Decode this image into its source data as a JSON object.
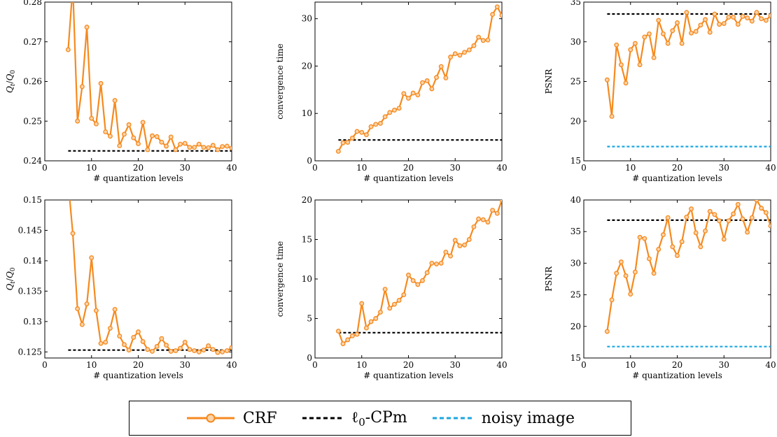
{
  "chart_data": [
    {
      "type": "line",
      "xlabel": "# quantization levels",
      "ylabel": "Q_t/Q_0",
      "xlim": [
        0,
        40
      ],
      "ylim": [
        0.24,
        0.28
      ],
      "xticks": [
        "0",
        "10",
        "20",
        "30",
        "40"
      ],
      "yticks": [
        "0.24",
        "0.25",
        "0.26",
        "0.27",
        "0.28"
      ],
      "series": [
        {
          "name": "CRF",
          "x": [
            5,
            6,
            7,
            8,
            9,
            10,
            11,
            12,
            13,
            14,
            15,
            16,
            17,
            18,
            19,
            20,
            21,
            22,
            23,
            24,
            25,
            26,
            27,
            28,
            29,
            30,
            31,
            32,
            33,
            34,
            35,
            36,
            37,
            38,
            39,
            40
          ],
          "values": [
            0.268,
            0.284,
            0.25,
            0.2587,
            0.2737,
            0.2507,
            0.2493,
            0.2595,
            0.2473,
            0.2462,
            0.2552,
            0.2438,
            0.2467,
            0.2491,
            0.2458,
            0.2443,
            0.2497,
            0.2428,
            0.2463,
            0.2461,
            0.2447,
            0.2437,
            0.246,
            0.2428,
            0.2442,
            0.2444,
            0.2434,
            0.2434,
            0.2442,
            0.2434,
            0.2433,
            0.2439,
            0.2428,
            0.2436,
            0.2437,
            0.2432
          ]
        },
        {
          "name": "l0-CPm",
          "x": [
            5,
            40
          ],
          "values": [
            0.2425,
            0.2425
          ]
        }
      ]
    },
    {
      "type": "line",
      "xlabel": "# quantization levels",
      "ylabel": "convergence time",
      "xlim": [
        0,
        40
      ],
      "ylim": [
        0,
        33.5
      ],
      "xticks": [
        "0",
        "10",
        "20",
        "30",
        "40"
      ],
      "yticks": [
        "0",
        "10",
        "20",
        "30"
      ],
      "series": [
        {
          "name": "CRF",
          "x": [
            5,
            6,
            7,
            8,
            9,
            10,
            11,
            12,
            13,
            14,
            15,
            16,
            17,
            18,
            19,
            20,
            21,
            22,
            23,
            24,
            25,
            26,
            27,
            28,
            29,
            30,
            31,
            32,
            33,
            34,
            35,
            36,
            37,
            38,
            39,
            40
          ],
          "values": [
            2.0,
            3.8,
            3.9,
            4.8,
            6.2,
            6.0,
            5.5,
            7.2,
            7.7,
            7.9,
            9.3,
            10.2,
            10.7,
            11.1,
            14.2,
            13.2,
            14.3,
            13.9,
            16.5,
            16.9,
            15.2,
            17.6,
            19.9,
            17.5,
            21.9,
            22.6,
            22.3,
            22.9,
            23.4,
            24.3,
            26.1,
            25.4,
            25.5,
            30.9,
            32.5,
            30.7
          ]
        },
        {
          "name": "l0-CPm",
          "x": [
            5,
            40
          ],
          "values": [
            4.4,
            4.4
          ]
        }
      ]
    },
    {
      "type": "line",
      "xlabel": "# quantization levels",
      "ylabel": "PSNR",
      "xlim": [
        0,
        40
      ],
      "ylim": [
        15,
        35
      ],
      "xticks": [
        "0",
        "10",
        "20",
        "30",
        "40"
      ],
      "yticks": [
        "15",
        "20",
        "25",
        "30",
        "35"
      ],
      "series": [
        {
          "name": "CRF",
          "x": [
            5,
            6,
            7,
            8,
            9,
            10,
            11,
            12,
            13,
            14,
            15,
            16,
            17,
            18,
            19,
            20,
            21,
            22,
            23,
            24,
            25,
            26,
            27,
            28,
            29,
            30,
            31,
            32,
            33,
            34,
            35,
            36,
            37,
            38,
            39,
            40
          ],
          "values": [
            25.2,
            20.6,
            29.6,
            27.1,
            24.8,
            29.0,
            29.8,
            27.1,
            30.6,
            31.0,
            28.0,
            32.7,
            31.0,
            29.8,
            31.4,
            32.4,
            29.8,
            33.7,
            31.1,
            31.3,
            32.1,
            32.8,
            31.2,
            33.5,
            32.2,
            32.3,
            33.1,
            33.1,
            32.2,
            33.2,
            33.0,
            32.6,
            33.7,
            32.9,
            32.7,
            33.3
          ]
        },
        {
          "name": "l0-CPm",
          "x": [
            5,
            40
          ],
          "values": [
            33.5,
            33.5
          ]
        },
        {
          "name": "noisy image",
          "x": [
            5,
            40
          ],
          "values": [
            16.8,
            16.8
          ]
        }
      ]
    },
    {
      "type": "line",
      "xlabel": "# quantization levels",
      "ylabel": "Q_t/Q_0",
      "xlim": [
        0,
        40
      ],
      "ylim": [
        0.124,
        0.15
      ],
      "xticks": [
        "0",
        "10",
        "20",
        "30",
        "40"
      ],
      "yticks": [
        "0.125",
        "0.13",
        "0.135",
        "0.14",
        "0.145",
        "0.15"
      ],
      "series": [
        {
          "name": "CRF",
          "x": [
            5,
            6,
            7,
            8,
            9,
            10,
            11,
            12,
            13,
            14,
            15,
            16,
            17,
            18,
            19,
            20,
            21,
            22,
            23,
            24,
            25,
            26,
            27,
            28,
            29,
            30,
            31,
            32,
            33,
            34,
            35,
            36,
            37,
            38,
            39,
            40
          ],
          "values": [
            0.153,
            0.1445,
            0.1321,
            0.1295,
            0.1329,
            0.1405,
            0.1318,
            0.1264,
            0.1266,
            0.1289,
            0.132,
            0.1276,
            0.1262,
            0.1253,
            0.1274,
            0.1283,
            0.1267,
            0.1254,
            0.1251,
            0.1259,
            0.1272,
            0.1261,
            0.1251,
            0.1252,
            0.1256,
            0.1266,
            0.1254,
            0.1252,
            0.125,
            0.1253,
            0.126,
            0.1254,
            0.1249,
            0.125,
            0.1252,
            0.1257
          ]
        },
        {
          "name": "l0-CPm",
          "x": [
            5,
            40
          ],
          "values": [
            0.1253,
            0.1253
          ]
        }
      ]
    },
    {
      "type": "line",
      "xlabel": "# quantization levels",
      "ylabel": "convergence time",
      "xlim": [
        0,
        40
      ],
      "ylim": [
        0,
        20
      ],
      "xticks": [
        "0",
        "10",
        "20",
        "30",
        "40"
      ],
      "yticks": [
        "0",
        "5",
        "10",
        "15",
        "20"
      ],
      "series": [
        {
          "name": "CRF",
          "x": [
            5,
            6,
            7,
            8,
            9,
            10,
            11,
            12,
            13,
            14,
            15,
            16,
            17,
            18,
            19,
            20,
            21,
            22,
            23,
            24,
            25,
            26,
            27,
            28,
            29,
            30,
            31,
            32,
            33,
            34,
            35,
            36,
            37,
            38,
            39,
            40
          ],
          "values": [
            3.4,
            1.8,
            2.3,
            2.8,
            3.0,
            6.9,
            3.8,
            4.6,
            5.0,
            5.8,
            8.7,
            6.3,
            6.8,
            7.3,
            8.0,
            10.5,
            9.8,
            9.3,
            9.8,
            10.8,
            12.0,
            11.9,
            12.0,
            13.4,
            12.9,
            14.9,
            14.2,
            14.3,
            15.0,
            16.6,
            17.6,
            17.5,
            17.2,
            18.7,
            18.3,
            20.0
          ]
        },
        {
          "name": "l0-CPm",
          "x": [
            5,
            40
          ],
          "values": [
            3.2,
            3.2
          ]
        }
      ]
    },
    {
      "type": "line",
      "xlabel": "# quantization levels",
      "ylabel": "PSNR",
      "xlim": [
        0,
        40
      ],
      "ylim": [
        15,
        40
      ],
      "xticks": [
        "0",
        "10",
        "20",
        "30",
        "40"
      ],
      "yticks": [
        "15",
        "20",
        "25",
        "30",
        "35",
        "40"
      ],
      "series": [
        {
          "name": "CRF",
          "x": [
            5,
            6,
            7,
            8,
            9,
            10,
            11,
            12,
            13,
            14,
            15,
            16,
            17,
            18,
            19,
            20,
            21,
            22,
            23,
            24,
            25,
            26,
            27,
            28,
            29,
            30,
            31,
            32,
            33,
            34,
            35,
            36,
            37,
            38,
            39,
            40
          ],
          "values": [
            19.2,
            24.2,
            28.4,
            30.2,
            28.0,
            25.1,
            28.6,
            34.1,
            33.9,
            30.7,
            28.4,
            32.2,
            34.5,
            37.2,
            32.6,
            31.2,
            33.4,
            37.3,
            38.6,
            34.8,
            32.6,
            35.1,
            38.2,
            37.7,
            36.7,
            33.8,
            36.7,
            37.8,
            39.3,
            37.0,
            34.9,
            37.2,
            40.0,
            38.7,
            38.0,
            35.9
          ]
        },
        {
          "name": "l0-CPm",
          "x": [
            5,
            40
          ],
          "values": [
            36.8,
            36.8
          ]
        },
        {
          "name": "noisy image",
          "x": [
            5,
            40
          ],
          "values": [
            16.8,
            16.8
          ]
        }
      ]
    }
  ],
  "legend": {
    "crf_label": "CRF",
    "l0_label_prefix": "ℓ",
    "l0_label_sub": "0",
    "l0_label_suffix": "-CPm",
    "noisy_label": "noisy image"
  },
  "colors": {
    "crf": "#f58a1f",
    "l0": "#000000",
    "noisy": "#1aa7e0"
  }
}
